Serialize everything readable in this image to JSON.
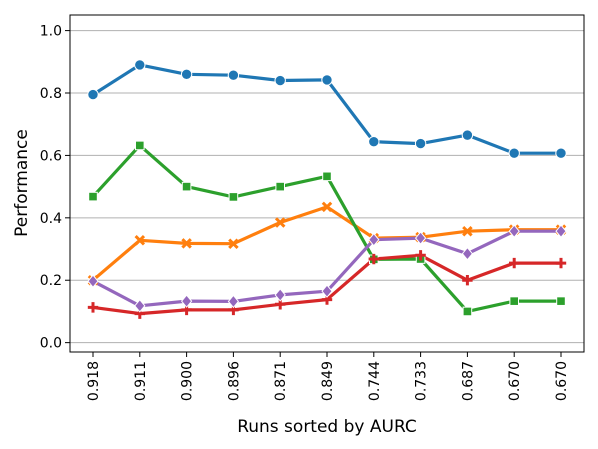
{
  "chart_data": {
    "type": "line",
    "title": "",
    "xlabel": "Runs sorted by AURC",
    "ylabel": "Performance",
    "categories": [
      "0.918",
      "0.911",
      "0.900",
      "0.896",
      "0.871",
      "0.849",
      "0.744",
      "0.733",
      "0.687",
      "0.670",
      "0.670"
    ],
    "ylim": [
      -0.03,
      1.05
    ],
    "yticks": [
      "0.0",
      "0.2",
      "0.4",
      "0.6",
      "0.8",
      "1.0"
    ],
    "grid": "horizontal",
    "legend": "none",
    "series": [
      {
        "color": "#1f77b4",
        "marker": "circle",
        "values": [
          0.795,
          0.89,
          0.86,
          0.857,
          0.84,
          0.842,
          0.644,
          0.638,
          0.665,
          0.607,
          0.607
        ]
      },
      {
        "color": "#ff7f0e",
        "marker": "x",
        "values": [
          0.2,
          0.328,
          0.318,
          0.317,
          0.385,
          0.435,
          0.335,
          0.338,
          0.357,
          0.362,
          0.362
        ]
      },
      {
        "color": "#2ca02c",
        "marker": "square",
        "values": [
          0.468,
          0.632,
          0.5,
          0.467,
          0.5,
          0.533,
          0.267,
          0.268,
          0.1,
          0.133,
          0.133
        ]
      },
      {
        "color": "#d62728",
        "marker": "plus",
        "values": [
          0.113,
          0.093,
          0.105,
          0.105,
          0.123,
          0.138,
          0.268,
          0.28,
          0.2,
          0.255,
          0.255
        ]
      },
      {
        "color": "#9467bd",
        "marker": "diamond",
        "values": [
          0.197,
          0.118,
          0.133,
          0.132,
          0.153,
          0.165,
          0.33,
          0.335,
          0.285,
          0.357,
          0.357
        ]
      }
    ]
  }
}
